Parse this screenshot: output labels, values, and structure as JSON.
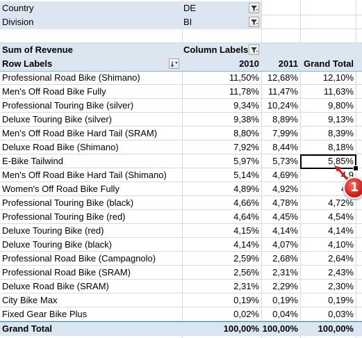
{
  "filters": [
    {
      "label": "Country",
      "value": "DE"
    },
    {
      "label": "Division",
      "value": "BI"
    }
  ],
  "header": {
    "values_label": "Sum of Revenue",
    "column_labels": "Column Labels",
    "row_labels": "Row Labels",
    "col_2010": "2010",
    "col_2011": "2011",
    "col_total": "Grand Total"
  },
  "rows": [
    {
      "label": "Professional Road Bike (Shimano)",
      "v2010": "11,50%",
      "v2011": "12,68%",
      "total": "12,10%"
    },
    {
      "label": "Men's Off Road Bike Fully",
      "v2010": "11,78%",
      "v2011": "11,47%",
      "total": "11,63%"
    },
    {
      "label": "Professional Touring Bike (silver)",
      "v2010": "9,34%",
      "v2011": "10,24%",
      "total": "9,80%"
    },
    {
      "label": "Deluxe Touring Bike (silver)",
      "v2010": "9,38%",
      "v2011": "8,89%",
      "total": "9,13%"
    },
    {
      "label": "Men's Off Road Bike Hard Tail (SRAM)",
      "v2010": "8,80%",
      "v2011": "7,99%",
      "total": "8,39%"
    },
    {
      "label": "Deluxe Road Bike (Shimano)",
      "v2010": "7,92%",
      "v2011": "8,44%",
      "total": "8,18%"
    },
    {
      "label": "E-Bike Tailwind",
      "v2010": "5,97%",
      "v2011": "5,73%",
      "total": "5,85%"
    },
    {
      "label": "Men's Off Road Bike Hard Tail (Shimano)",
      "v2010": "5,14%",
      "v2011": "4,69%",
      "total": "4,9"
    },
    {
      "label": "Women's Off Road Bike Fully",
      "v2010": "4,89%",
      "v2011": "4,92%",
      "total": "4,9"
    },
    {
      "label": "Professional Touring Bike (black)",
      "v2010": "4,66%",
      "v2011": "4,78%",
      "total": "4,72%"
    },
    {
      "label": "Professional Touring Bike (red)",
      "v2010": "4,64%",
      "v2011": "4,45%",
      "total": "4,54%"
    },
    {
      "label": "Deluxe Touring Bike (red)",
      "v2010": "4,15%",
      "v2011": "4,14%",
      "total": "4,14%"
    },
    {
      "label": "Deluxe Touring Bike (black)",
      "v2010": "4,14%",
      "v2011": "4,07%",
      "total": "4,10%"
    },
    {
      "label": "Professional Road Bike (Campagnolo)",
      "v2010": "2,59%",
      "v2011": "2,68%",
      "total": "2,64%"
    },
    {
      "label": "Professional Road Bike (SRAM)",
      "v2010": "2,56%",
      "v2011": "2,31%",
      "total": "2,43%"
    },
    {
      "label": "Deluxe Road Bike (SRAM)",
      "v2010": "2,31%",
      "v2011": "2,29%",
      "total": "2,30%"
    },
    {
      "label": "City Bike Max",
      "v2010": "0,19%",
      "v2011": "0,19%",
      "total": "0,19%"
    },
    {
      "label": "Fixed Gear Bike Plus",
      "v2010": "0,02%",
      "v2011": "0,04%",
      "total": "0,03%"
    }
  ],
  "grand_total": {
    "label": "Grand Total",
    "v2010": "100,00%",
    "v2011": "100,00%",
    "total": "100,00%"
  },
  "callout": {
    "number": "1",
    "color": "#d0201a"
  },
  "colors": {
    "header_fill": "#dce6f1",
    "header_border": "#95b3d7",
    "total_border": "#4f81bd",
    "grid": "#d9d9d9"
  },
  "icons": {
    "filter": "filter-icon",
    "sort": "sort-descending-icon"
  }
}
